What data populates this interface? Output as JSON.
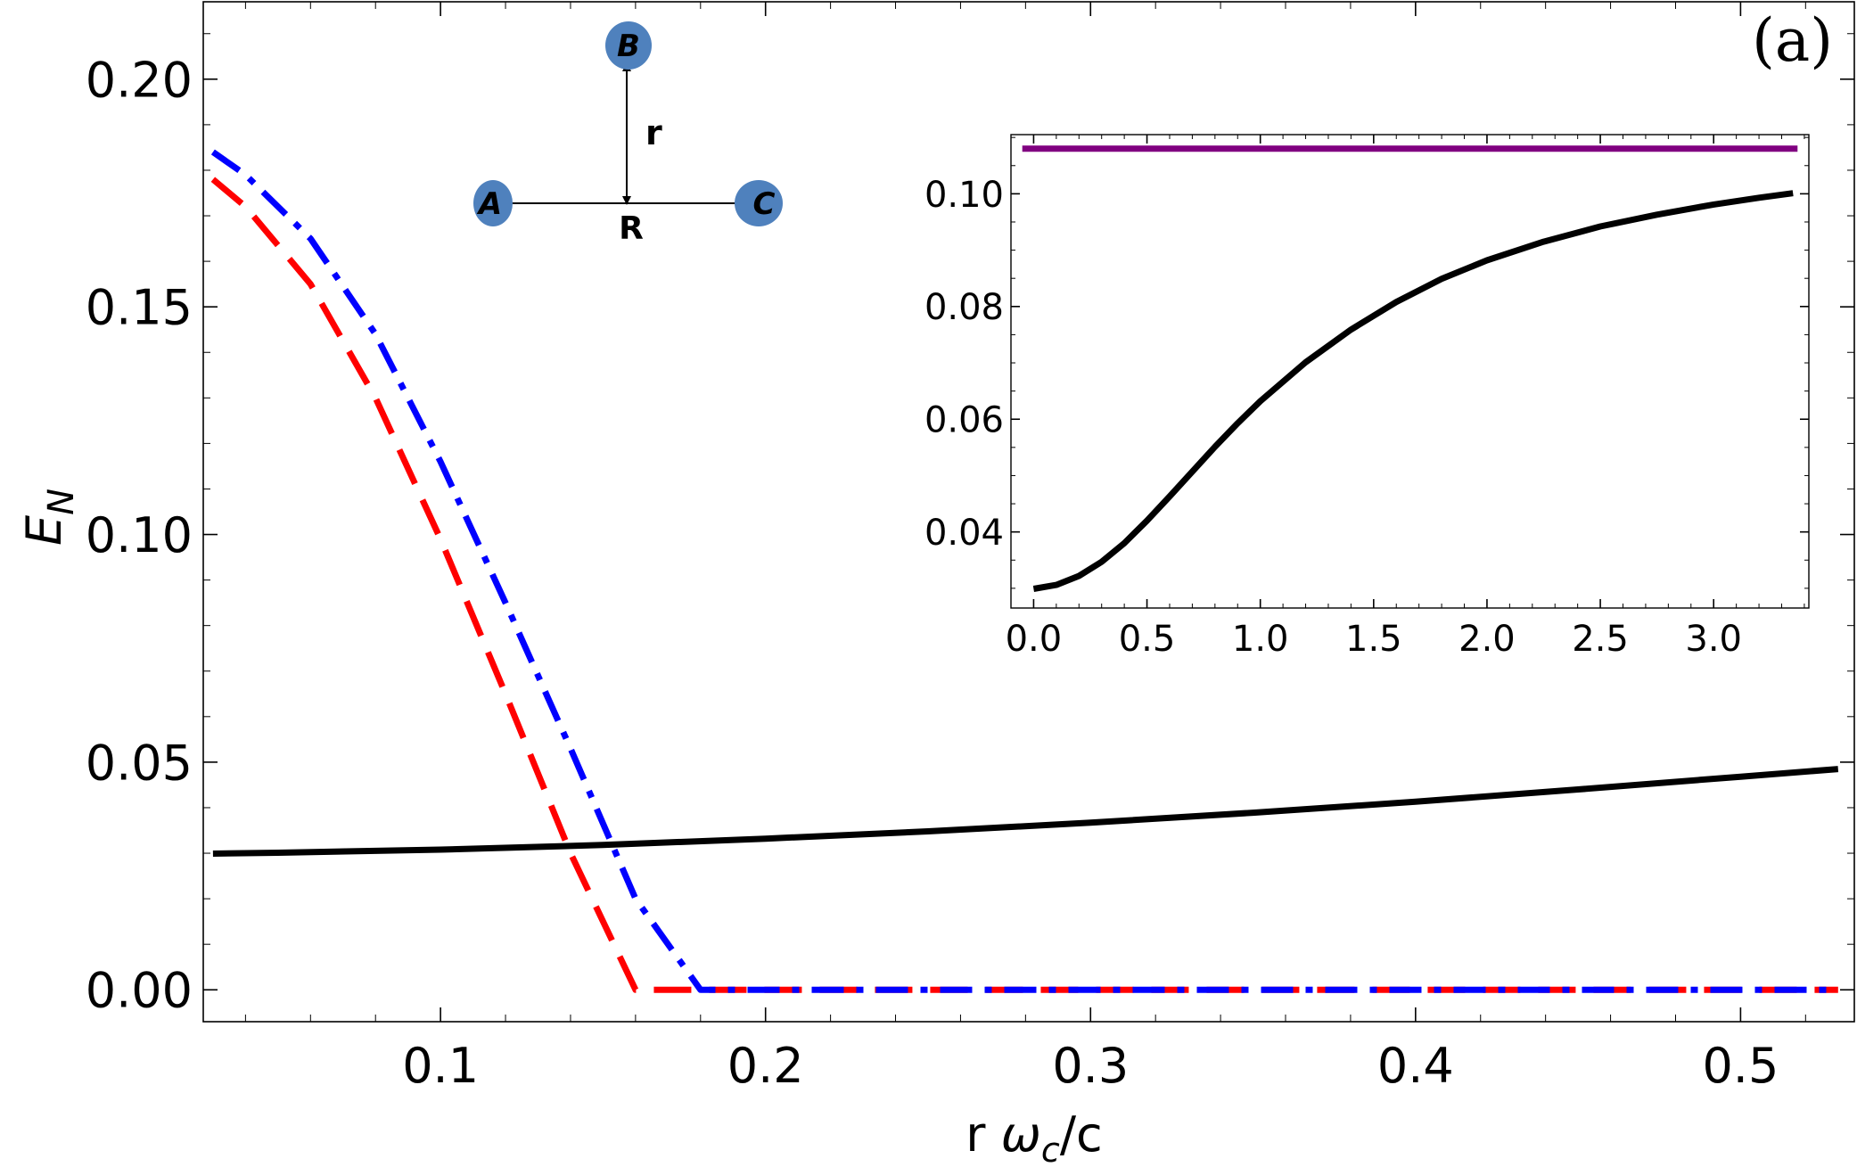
{
  "chart_data": [
    {
      "type": "line",
      "panel_label": "(a)",
      "xlabel": {
        "prefix": "r ",
        "omega": "ω",
        "sub": "c",
        "suffix": "/c"
      },
      "ylabel": {
        "main": "E",
        "sub": "N"
      },
      "xlim": [
        0.027,
        0.535
      ],
      "ylim": [
        -0.007,
        0.217
      ],
      "xticks": [
        0.1,
        0.2,
        0.3,
        0.4,
        0.5
      ],
      "xtick_labels": [
        "0.1",
        "0.2",
        "0.3",
        "0.4",
        "0.5"
      ],
      "yticks": [
        0.0,
        0.05,
        0.1,
        0.15,
        0.2
      ],
      "ytick_labels": [
        "0.00",
        "0.05",
        "0.10",
        "0.15",
        "0.20"
      ],
      "series": [
        {
          "name": "black-solid",
          "color": "#000000",
          "dash": "solid",
          "x": [
            0.03,
            0.05,
            0.1,
            0.15,
            0.2,
            0.25,
            0.3,
            0.35,
            0.4,
            0.45,
            0.5,
            0.53
          ],
          "y": [
            0.0299,
            0.0301,
            0.0308,
            0.0318,
            0.0332,
            0.0348,
            0.0367,
            0.0389,
            0.0413,
            0.044,
            0.0468,
            0.0485
          ]
        },
        {
          "name": "red-dashed",
          "color": "#ff0000",
          "dash": "dashed",
          "x": [
            0.03,
            0.04,
            0.06,
            0.08,
            0.1,
            0.12,
            0.14,
            0.16,
            0.18,
            0.53
          ],
          "y": [
            0.178,
            0.172,
            0.155,
            0.13,
            0.099,
            0.065,
            0.03,
            0.0,
            0.0,
            0.0
          ]
        },
        {
          "name": "blue-dashdot",
          "color": "#0000ff",
          "dash": "dashdot",
          "x": [
            0.03,
            0.04,
            0.06,
            0.08,
            0.1,
            0.12,
            0.14,
            0.16,
            0.18,
            0.53
          ],
          "y": [
            0.184,
            0.179,
            0.165,
            0.144,
            0.116,
            0.085,
            0.053,
            0.02,
            0.0,
            0.0
          ]
        }
      ]
    },
    {
      "type": "line",
      "role": "inset",
      "xlim": [
        -0.1,
        3.42
      ],
      "ylim": [
        0.0265,
        0.1105
      ],
      "xticks": [
        0.0,
        0.5,
        1.0,
        1.5,
        2.0,
        2.5,
        3.0
      ],
      "xtick_labels": [
        "0.0",
        "0.5",
        "1.0",
        "1.5",
        "2.0",
        "2.5",
        "3.0"
      ],
      "yticks": [
        0.04,
        0.06,
        0.08,
        0.1
      ],
      "ytick_labels": [
        "0.04",
        "0.06",
        "0.08",
        "0.10"
      ],
      "series": [
        {
          "name": "black-solid",
          "color": "#000000",
          "dash": "solid",
          "x": [
            0.0,
            0.1,
            0.2,
            0.3,
            0.4,
            0.5,
            0.6,
            0.7,
            0.8,
            0.9,
            1.0,
            1.2,
            1.4,
            1.6,
            1.8,
            2.0,
            2.25,
            2.5,
            2.75,
            3.0,
            3.2,
            3.35
          ],
          "y": [
            0.0299,
            0.0306,
            0.0322,
            0.0347,
            0.038,
            0.042,
            0.0463,
            0.0507,
            0.0551,
            0.0593,
            0.0632,
            0.0701,
            0.0759,
            0.0808,
            0.0849,
            0.0882,
            0.0915,
            0.0942,
            0.0963,
            0.0981,
            0.0993,
            0.1001
          ]
        },
        {
          "name": "purple-solid",
          "color": "#800080",
          "dash": "solid",
          "x": [
            -0.05,
            3.37
          ],
          "y": [
            0.108,
            0.108
          ]
        }
      ]
    }
  ],
  "diagram": {
    "labels": {
      "a": "A",
      "b": "B",
      "c": "C",
      "r": "r",
      "R": "R"
    },
    "node_color": "#4f81bd"
  }
}
